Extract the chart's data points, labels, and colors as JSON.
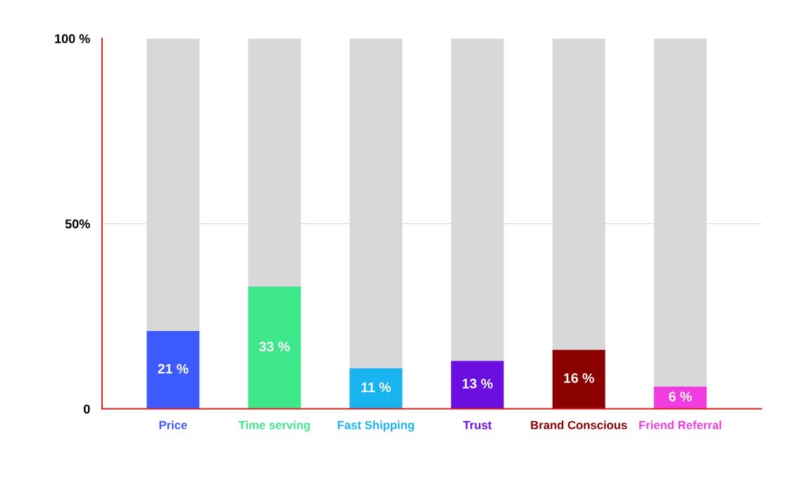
{
  "chart_data": {
    "type": "bar",
    "stacked": true,
    "categories": [
      "Price",
      "Time serving",
      "Fast Shipping",
      "Trust",
      "Brand Conscious",
      "Friend Referral"
    ],
    "series": [
      {
        "colors": [
          "#3d5afe",
          "#3ee88a",
          "#18b4f0",
          "#6a0fe0",
          "#8b0000",
          "#f03ce0"
        ],
        "values": [
          21,
          33,
          11,
          13,
          16,
          6
        ],
        "value_labels": [
          "21 %",
          "33 %",
          "11 %",
          "13 %",
          "16 %",
          "6 %"
        ]
      },
      {
        "color": "#d8d8d8",
        "values": [
          79,
          67,
          89,
          87,
          84,
          94
        ]
      }
    ],
    "ylim": [
      0,
      100
    ],
    "yticks": [
      {
        "value": 0,
        "label": "0"
      },
      {
        "value": 50,
        "label": "50%"
      },
      {
        "value": 100,
        "label": "100 %"
      }
    ],
    "ref_lines": [
      {
        "axis": "y",
        "value": 50,
        "color": "#e6d6d6"
      }
    ],
    "grid": false,
    "legend": false
  }
}
